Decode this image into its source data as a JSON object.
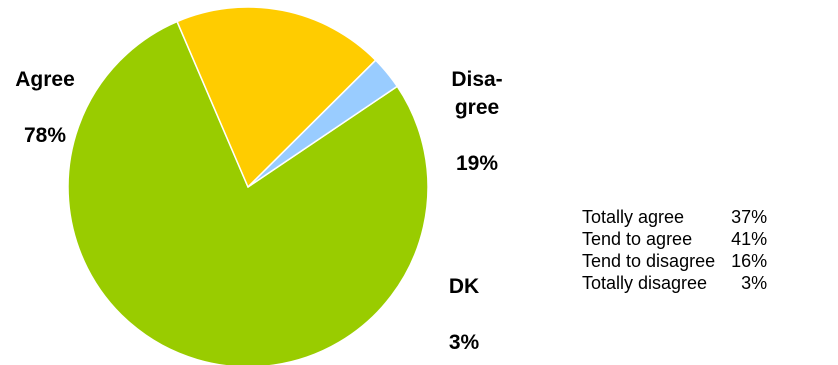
{
  "chart_data": {
    "type": "pie",
    "slices": [
      {
        "label": "Agree",
        "value": 78,
        "display": "78%",
        "color": "#99CC00"
      },
      {
        "label": "Disa-\ngree",
        "value": 19,
        "display": "19%",
        "color": "#FFCC00"
      },
      {
        "label": "DK",
        "value": 3,
        "display": "3%",
        "color": "#99CCFF"
      }
    ],
    "start_angle_deg": 56,
    "slice_edge_color": "#ffffff"
  },
  "breakdown": [
    {
      "label": "Totally agree",
      "value": "37%"
    },
    {
      "label": "Tend to agree",
      "value": "41%"
    },
    {
      "label": "Tend to disagree",
      "value": "16%"
    },
    {
      "label": "Totally disagree",
      "value": "3%"
    }
  ]
}
